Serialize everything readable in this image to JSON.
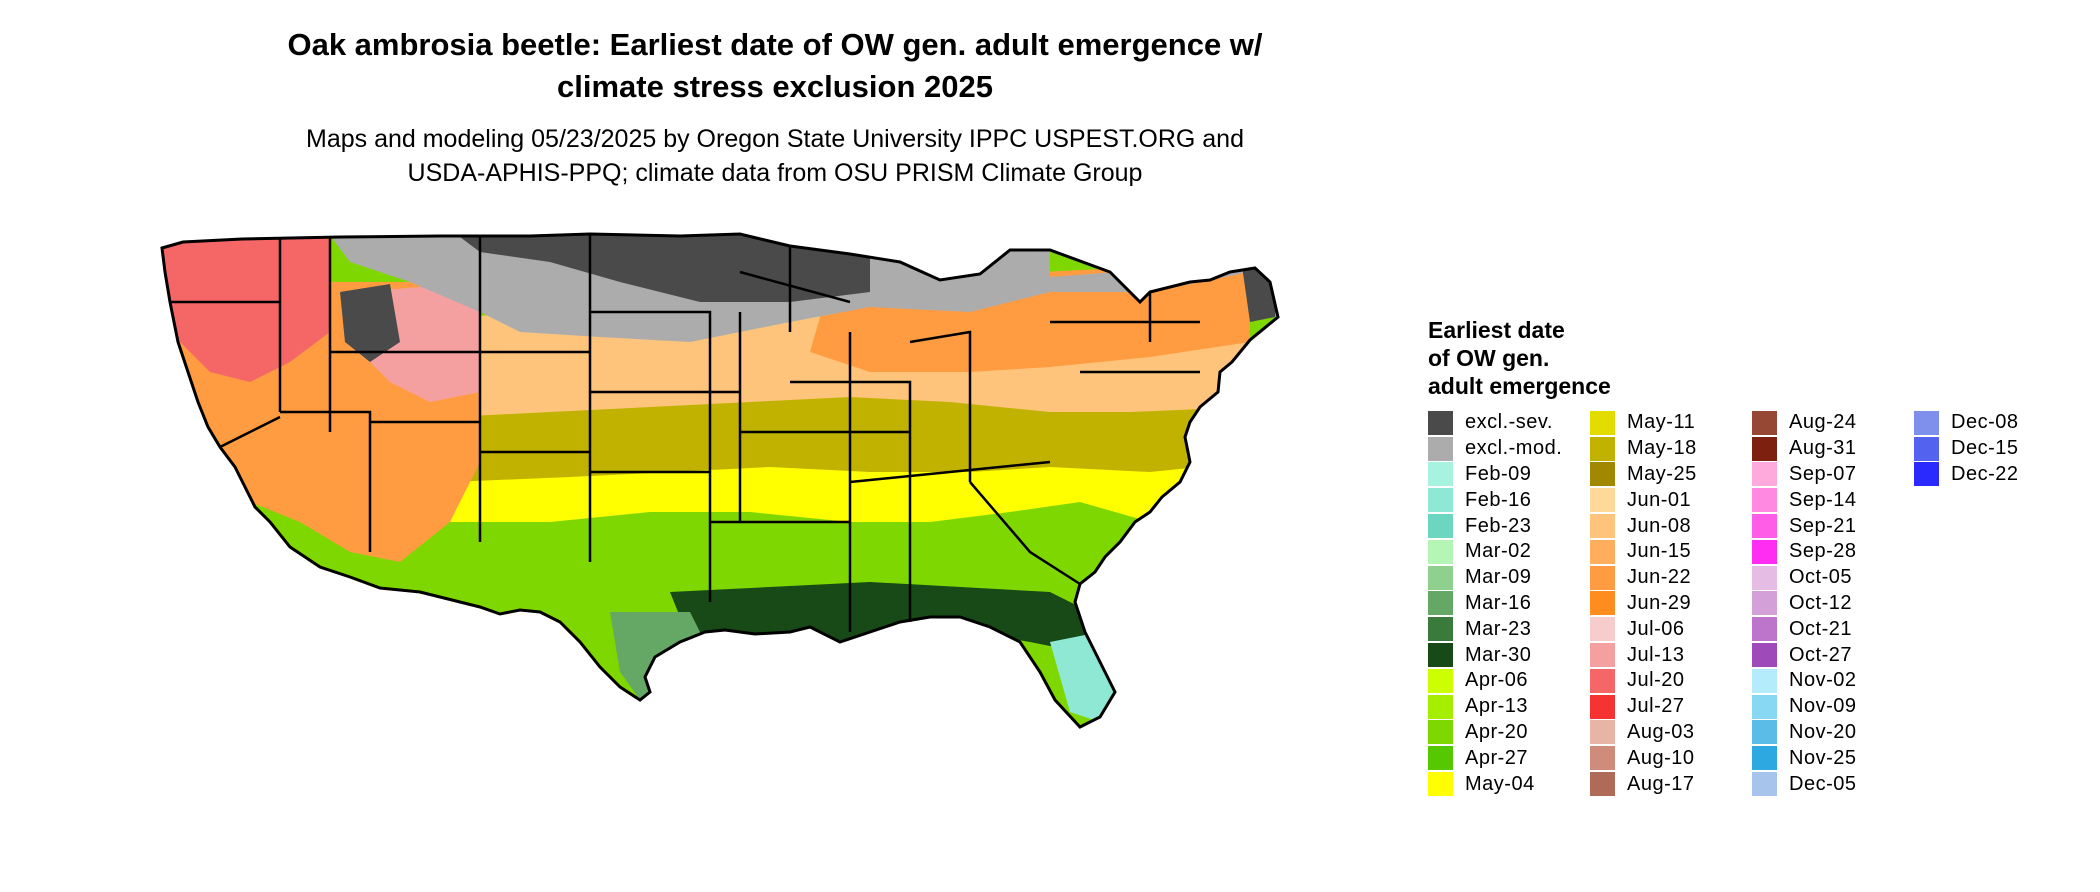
{
  "header": {
    "title_line1": "Oak ambrosia beetle: Earliest date of OW gen. adult emergence w/",
    "title_line2": "climate stress exclusion 2025",
    "subtitle_line1": "Maps and modeling 05/23/2025 by Oregon State University IPPC USPEST.ORG and",
    "subtitle_line2": "USDA-APHIS-PPQ; climate data from OSU PRISM Climate Group"
  },
  "legend": {
    "title_line1": "Earliest date",
    "title_line2": "of OW gen.",
    "title_line3": "adult emergence",
    "items": [
      {
        "label": "excl.-sev.",
        "color": "#4a4a4a"
      },
      {
        "label": "excl.-mod.",
        "color": "#acacac"
      },
      {
        "label": "Feb-09",
        "color": "#a8f2e0"
      },
      {
        "label": "Feb-16",
        "color": "#8fe8d4"
      },
      {
        "label": "Feb-23",
        "color": "#6cd6c1"
      },
      {
        "label": "Mar-02",
        "color": "#b5f5b5"
      },
      {
        "label": "Mar-09",
        "color": "#8fd08f"
      },
      {
        "label": "Mar-16",
        "color": "#65a865"
      },
      {
        "label": "Mar-23",
        "color": "#3a7a3a"
      },
      {
        "label": "Mar-30",
        "color": "#184a18"
      },
      {
        "label": "Apr-06",
        "color": "#ccff00"
      },
      {
        "label": "Apr-13",
        "color": "#a6ee00"
      },
      {
        "label": "Apr-20",
        "color": "#7ed800"
      },
      {
        "label": "Apr-27",
        "color": "#55c800"
      },
      {
        "label": "May-04",
        "color": "#ffff00"
      },
      {
        "label": "May-11",
        "color": "#e2dc00"
      },
      {
        "label": "May-18",
        "color": "#c2b200"
      },
      {
        "label": "May-25",
        "color": "#a08800"
      },
      {
        "label": "Jun-01",
        "color": "#ffd99a"
      },
      {
        "label": "Jun-08",
        "color": "#ffc47c"
      },
      {
        "label": "Jun-15",
        "color": "#ffae5e"
      },
      {
        "label": "Jun-22",
        "color": "#ff9c42"
      },
      {
        "label": "Jun-29",
        "color": "#ff8c1e"
      },
      {
        "label": "Jul-06",
        "color": "#f6cccc"
      },
      {
        "label": "Jul-13",
        "color": "#f5a0a0"
      },
      {
        "label": "Jul-20",
        "color": "#f56666"
      },
      {
        "label": "Jul-27",
        "color": "#f53333"
      },
      {
        "label": "Aug-03",
        "color": "#e8b4a6"
      },
      {
        "label": "Aug-10",
        "color": "#d08c7a"
      },
      {
        "label": "Aug-17",
        "color": "#b06a58"
      },
      {
        "label": "Aug-24",
        "color": "#964834"
      },
      {
        "label": "Aug-31",
        "color": "#7e2010"
      },
      {
        "label": "Sep-07",
        "color": "#ffaadd"
      },
      {
        "label": "Sep-14",
        "color": "#ff88e0"
      },
      {
        "label": "Sep-21",
        "color": "#ff5ce8"
      },
      {
        "label": "Sep-28",
        "color": "#ff2cf2"
      },
      {
        "label": "Oct-05",
        "color": "#e4bce4"
      },
      {
        "label": "Oct-12",
        "color": "#d4a0d8"
      },
      {
        "label": "Oct-21",
        "color": "#bd75cc"
      },
      {
        "label": "Oct-27",
        "color": "#9e4ab8"
      },
      {
        "label": "Nov-02",
        "color": "#b4ecfc"
      },
      {
        "label": "Nov-09",
        "color": "#88d8f4"
      },
      {
        "label": "Nov-20",
        "color": "#5cbce8"
      },
      {
        "label": "Nov-25",
        "color": "#2ea8e0"
      },
      {
        "label": "Dec-05",
        "color": "#a6c4ec"
      },
      {
        "label": "Dec-08",
        "color": "#7e90ec"
      },
      {
        "label": "Dec-15",
        "color": "#5462f0"
      },
      {
        "label": "Dec-22",
        "color": "#2a2aff"
      }
    ]
  },
  "map_zones": [
    {
      "name": "excl-severe",
      "color": "#4a4a4a"
    },
    {
      "name": "excl-moderate",
      "color": "#acacac"
    },
    {
      "name": "jul-aug-pink",
      "color": "#f56666"
    },
    {
      "name": "jun-orange",
      "color": "#ff9c42"
    },
    {
      "name": "jun-peach",
      "color": "#ffc47c"
    },
    {
      "name": "may-olive",
      "color": "#c2b200"
    },
    {
      "name": "may-yellow",
      "color": "#ffff00"
    },
    {
      "name": "apr-green",
      "color": "#7ed800"
    },
    {
      "name": "mar-dark-green",
      "color": "#184a18"
    },
    {
      "name": "mar-mid-green",
      "color": "#65a865"
    },
    {
      "name": "feb-mint",
      "color": "#8fe8d4"
    }
  ]
}
